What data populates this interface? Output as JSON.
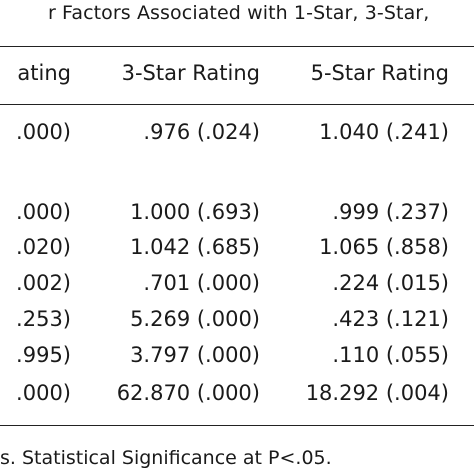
{
  "caption": "r Factors Associated with 1-Star, 3-Star,",
  "headers": [
    "ating",
    "3-Star Rating",
    "5-Star Rating"
  ],
  "rows": [
    [
      ".000)",
      ".976 (.024)",
      "1.040 (.241)"
    ],
    [
      ".000)",
      "1.000 (.693)",
      ".999 (.237)"
    ],
    [
      ".020)",
      "1.042 (.685)",
      "1.065 (.858)"
    ],
    [
      ".002)",
      ".701 (.000)",
      ".224 (.015)"
    ],
    [
      ".253)",
      "5.269 (.000)",
      ".423 (.121)"
    ],
    [
      ".995)",
      "3.797 (.000)",
      ".110 (.055)"
    ],
    [
      ".000)",
      "62.870 (.000)",
      "18.292 (.004)"
    ]
  ],
  "note": "s. Statistical Significance at P<.05."
}
